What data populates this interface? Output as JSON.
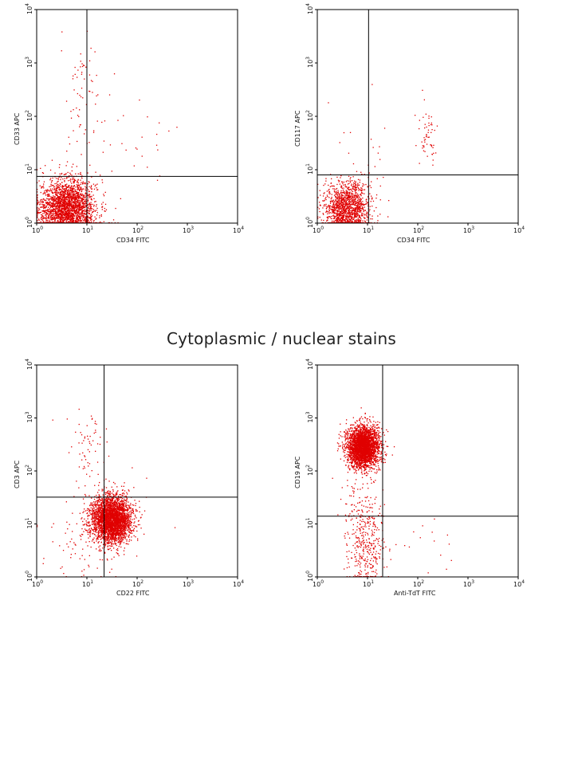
{
  "section_title": "Cytoplasmic / nuclear stains",
  "colors": {
    "dots": "#e00000",
    "frame": "#000000",
    "background": "#ffffff"
  },
  "chart_data": [
    {
      "type": "scatter",
      "xlabel": "CD34 FITC",
      "ylabel": "CD33 APC",
      "xscale": "log",
      "yscale": "log",
      "xlim": [
        1,
        10000
      ],
      "ylim": [
        1,
        10000
      ],
      "xticks": [
        "10^0",
        "10^1",
        "10^2",
        "10^3",
        "10^4"
      ],
      "yticks": [
        "10^0",
        "10^1",
        "10^2",
        "10^3",
        "10^4"
      ],
      "gate": {
        "x": 10,
        "y": 7.5
      },
      "clusters": [
        {
          "cx": 4,
          "cy": 1.8,
          "sx": 0.28,
          "sy": 0.28,
          "n": 2600
        },
        {
          "cx": 8,
          "cy": 150,
          "sx": 0.22,
          "sy": 0.7,
          "n": 70
        },
        {
          "cx": 100,
          "cy": 30,
          "sx": 0.45,
          "sy": 0.4,
          "n": 25
        }
      ]
    },
    {
      "type": "scatter",
      "xlabel": "CD34 FITC",
      "ylabel": "CD117 APC",
      "xscale": "log",
      "yscale": "log",
      "xlim": [
        1,
        10000
      ],
      "ylim": [
        1,
        10000
      ],
      "xticks": [
        "10^0",
        "10^1",
        "10^2",
        "10^3",
        "10^4"
      ],
      "yticks": [
        "10^0",
        "10^1",
        "10^2",
        "10^3",
        "10^4"
      ],
      "gate": {
        "x": 10.5,
        "y": 8
      },
      "clusters": [
        {
          "cx": 3.8,
          "cy": 1.8,
          "sx": 0.22,
          "sy": 0.26,
          "n": 1500
        },
        {
          "cx": 150,
          "cy": 50,
          "sx": 0.14,
          "sy": 0.28,
          "n": 55
        },
        {
          "cx": 8,
          "cy": 20,
          "sx": 0.4,
          "sy": 0.5,
          "n": 20
        }
      ]
    },
    {
      "type": "scatter",
      "xlabel": "CD22 FITC",
      "ylabel": "CD3 APC",
      "xscale": "log",
      "yscale": "log",
      "xlim": [
        1,
        10000
      ],
      "ylim": [
        1,
        10000
      ],
      "xticks": [
        "10^0",
        "10^1",
        "10^2",
        "10^3",
        "10^4"
      ],
      "yticks": [
        "10^0",
        "10^1",
        "10^2",
        "10^3",
        "10^4"
      ],
      "gate": {
        "x": 22,
        "y": 32
      },
      "clusters": [
        {
          "cx": 30,
          "cy": 12,
          "sx": 0.2,
          "sy": 0.22,
          "n": 3200
        },
        {
          "cx": 10,
          "cy": 300,
          "sx": 0.2,
          "sy": 0.35,
          "n": 60
        },
        {
          "cx": 12,
          "cy": 6,
          "sx": 0.45,
          "sy": 0.45,
          "n": 120
        }
      ]
    },
    {
      "type": "scatter",
      "xlabel": "Anti-TdT FITC",
      "ylabel": "CD19 APC",
      "xscale": "log",
      "yscale": "log",
      "xlim": [
        1,
        10000
      ],
      "ylim": [
        1,
        10000
      ],
      "xticks": [
        "10^0",
        "10^1",
        "10^2",
        "10^3",
        "10^4"
      ],
      "yticks": [
        "10^0",
        "10^1",
        "10^2",
        "10^3",
        "10^4"
      ],
      "gate": {
        "x": 20,
        "y": 14
      },
      "clusters": [
        {
          "cx": 8,
          "cy": 280,
          "sx": 0.16,
          "sy": 0.2,
          "n": 3000
        },
        {
          "cx": 9,
          "cy": 5,
          "sx": 0.2,
          "sy": 0.55,
          "n": 420
        },
        {
          "cx": 150,
          "cy": 5,
          "sx": 0.3,
          "sy": 0.3,
          "n": 15
        }
      ]
    }
  ]
}
